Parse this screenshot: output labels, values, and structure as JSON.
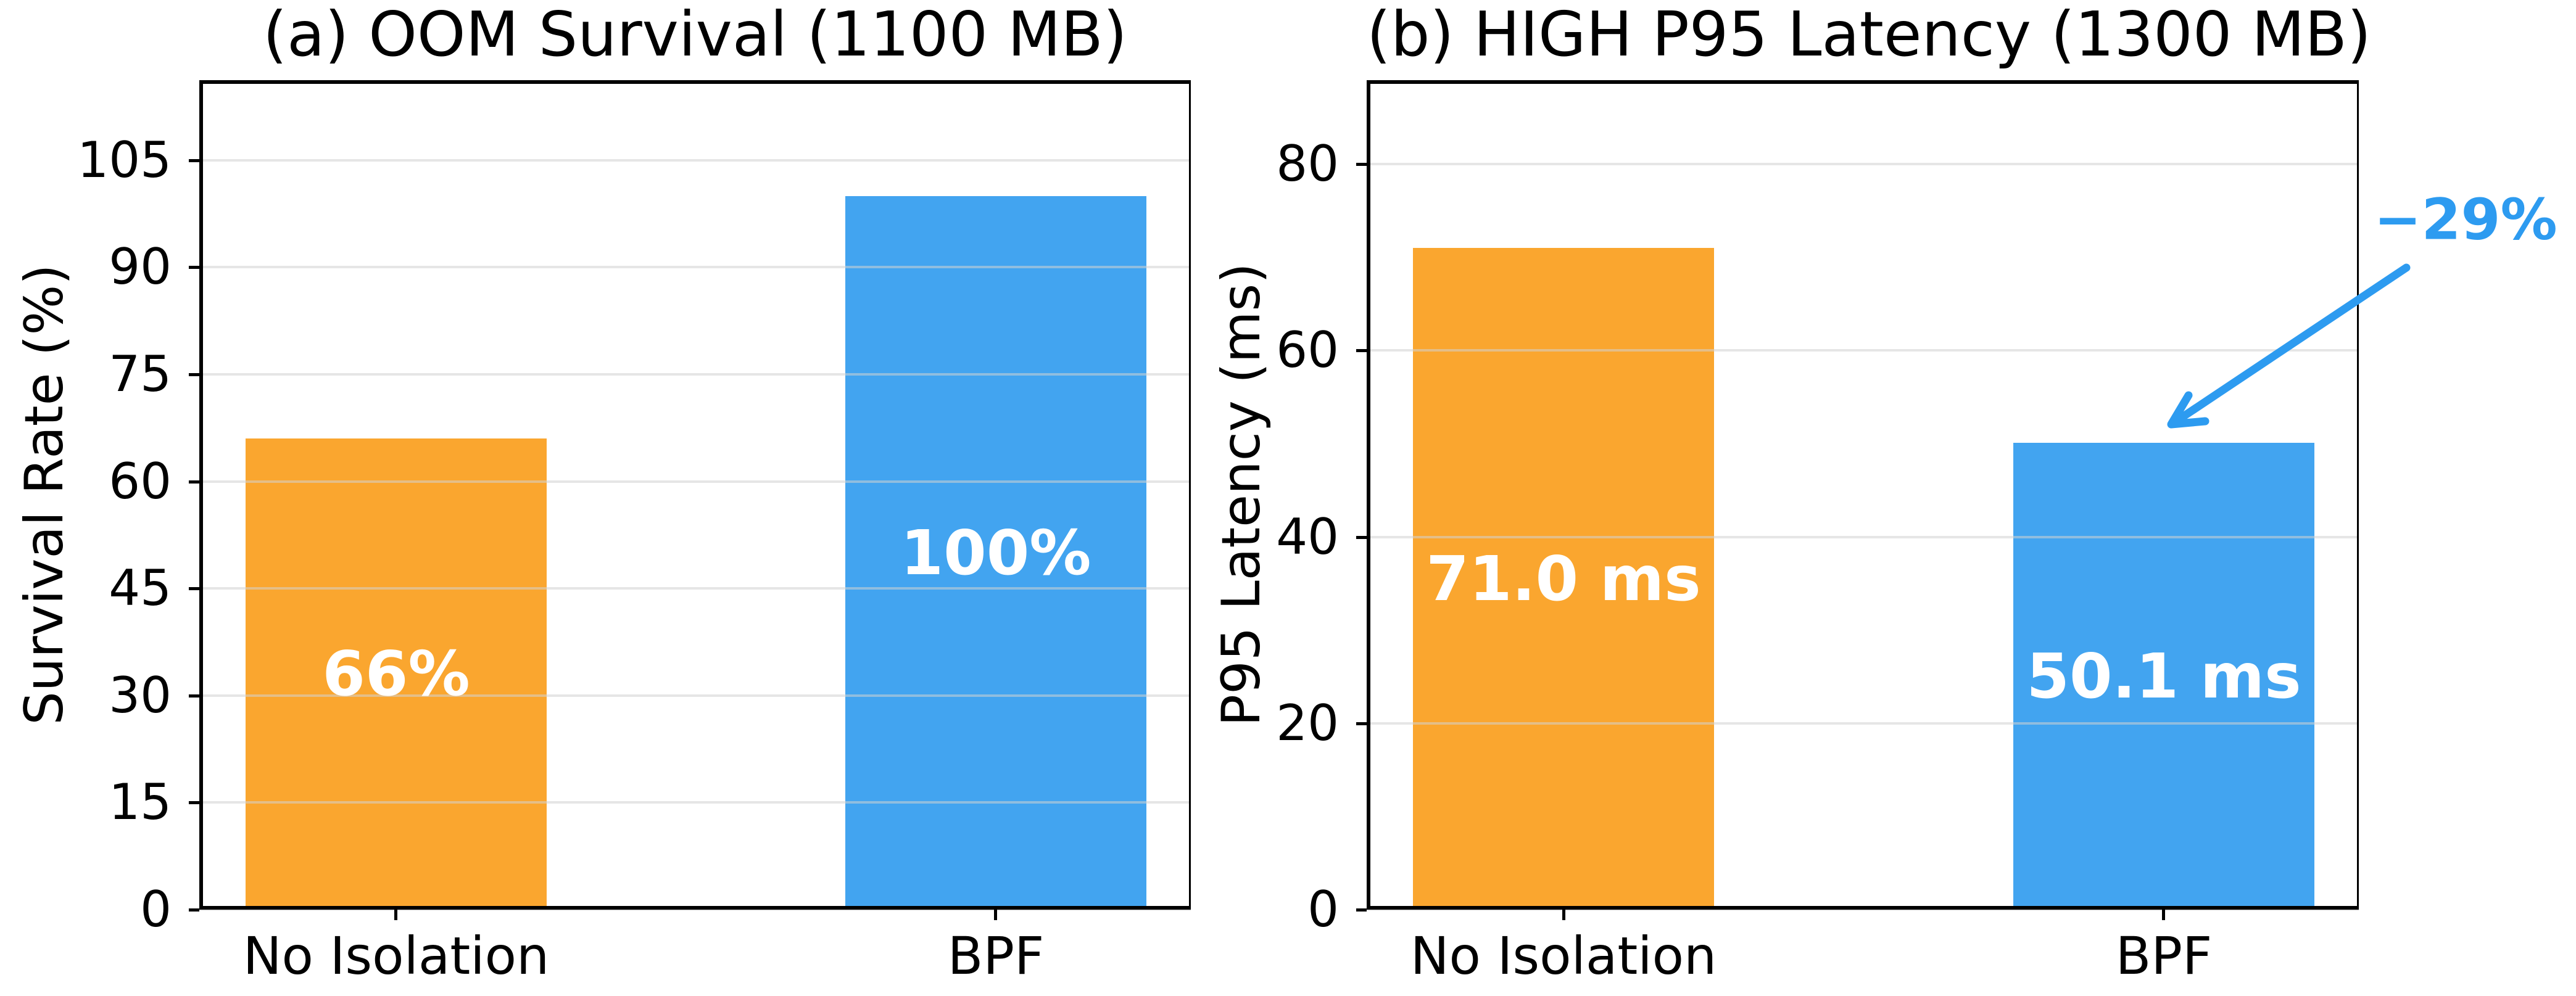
{
  "figure": {
    "background": "#ffffff",
    "text_color": "#000000",
    "grid_color": "#d2d2d2"
  },
  "chart_data": [
    {
      "type": "bar",
      "panel": "a",
      "title": "(a) OOM Survival (1100 MB)",
      "ylabel": "Survival Rate (%)",
      "xlabel": "",
      "categories": [
        "No Isolation",
        "BPF"
      ],
      "values": [
        66,
        100
      ],
      "bar_labels": [
        "66%",
        "100%"
      ],
      "bar_colors": [
        "#FAA62F",
        "#42A4F0"
      ],
      "bar_label_color": "#ffffff",
      "yticks": [
        0,
        15,
        30,
        45,
        60,
        75,
        90,
        105
      ],
      "ylim": [
        0,
        116.2
      ],
      "grid": true,
      "legend_position": "none"
    },
    {
      "type": "bar",
      "panel": "b",
      "title": "(b) HIGH P95 Latency (1300 MB)",
      "ylabel": "P95 Latency (ms)",
      "xlabel": "",
      "categories": [
        "No Isolation",
        "BPF"
      ],
      "values": [
        71.0,
        50.1
      ],
      "bar_labels": [
        "71.0 ms",
        "50.1 ms"
      ],
      "bar_colors": [
        "#FAA62F",
        "#42A4F0"
      ],
      "bar_label_color": "#ffffff",
      "yticks": [
        0,
        20,
        40,
        60,
        80
      ],
      "ylim": [
        0,
        89
      ],
      "grid": true,
      "legend_position": "none",
      "annotation": {
        "text": "−29%",
        "color": "#2D9BF0",
        "points_to": "BPF bar top"
      }
    }
  ]
}
